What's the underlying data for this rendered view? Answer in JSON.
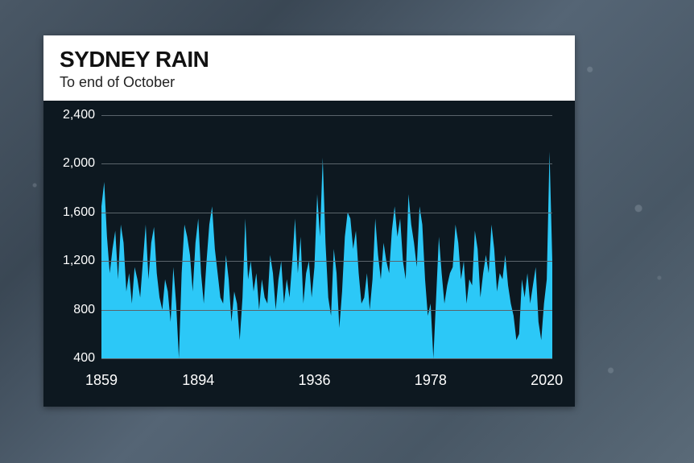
{
  "header": {
    "title": "SYDNEY RAIN",
    "subtitle": "To end of October",
    "title_fontsize": 28,
    "subtitle_fontsize": 18,
    "title_color": "#111111",
    "subtitle_color": "#222222",
    "bg": "#ffffff"
  },
  "chart": {
    "type": "area",
    "bg": "#0d1820",
    "series_color": "#2cc8f7",
    "grid_color": "#5a646b",
    "tick_color": "#ffffff",
    "tick_fontsize": 16,
    "ylim": [
      400,
      2400
    ],
    "yticks": [
      400,
      800,
      1200,
      1600,
      2000,
      2400
    ],
    "ytick_labels": [
      "400",
      "800",
      "1,200",
      "1,600",
      "2,000",
      "2,400"
    ],
    "xlim": [
      1859,
      2022
    ],
    "xticks": [
      1859,
      1894,
      1936,
      1978,
      2020
    ],
    "xtick_labels": [
      "1859",
      "1894",
      "1936",
      "1978",
      "2020"
    ],
    "values": [
      1650,
      1850,
      1400,
      1100,
      1300,
      1450,
      1050,
      1500,
      1350,
      950,
      1100,
      850,
      1150,
      1050,
      900,
      1200,
      1500,
      1050,
      1350,
      1480,
      1100,
      900,
      800,
      1050,
      950,
      700,
      1150,
      850,
      400,
      1100,
      1500,
      1400,
      1250,
      950,
      1350,
      1550,
      1100,
      850,
      1200,
      1500,
      1650,
      1300,
      1100,
      900,
      850,
      1250,
      1050,
      700,
      950,
      850,
      550,
      900,
      1550,
      1050,
      1200,
      950,
      1100,
      800,
      1050,
      900,
      850,
      1250,
      1100,
      800,
      1050,
      1200,
      850,
      1050,
      900,
      1200,
      1550,
      1100,
      1400,
      850,
      1100,
      1200,
      900,
      1150,
      1750,
      1400,
      2050,
      1350,
      900,
      750,
      1300,
      1100,
      650,
      950,
      1400,
      1600,
      1550,
      1300,
      1450,
      1100,
      850,
      900,
      1100,
      800,
      1050,
      1550,
      1250,
      1050,
      1350,
      1200,
      1100,
      1450,
      1650,
      1400,
      1550,
      1200,
      1050,
      1750,
      1500,
      1350,
      1150,
      1650,
      1500,
      1050,
      750,
      850,
      400,
      900,
      1400,
      1100,
      850,
      1000,
      1100,
      1150,
      1500,
      1350,
      1050,
      1200,
      850,
      1050,
      1000,
      1450,
      1300,
      900,
      1100,
      1250,
      1100,
      1500,
      1300,
      950,
      1100,
      1050,
      1250,
      1000,
      850,
      750,
      550,
      600,
      1050,
      900,
      1100,
      850,
      1000,
      1150,
      700,
      550,
      850,
      1050,
      2100,
      1200
    ]
  },
  "page_bg_colors": [
    "#4a5866",
    "#3a4754",
    "#556575",
    "#485765",
    "#5a6a78"
  ]
}
